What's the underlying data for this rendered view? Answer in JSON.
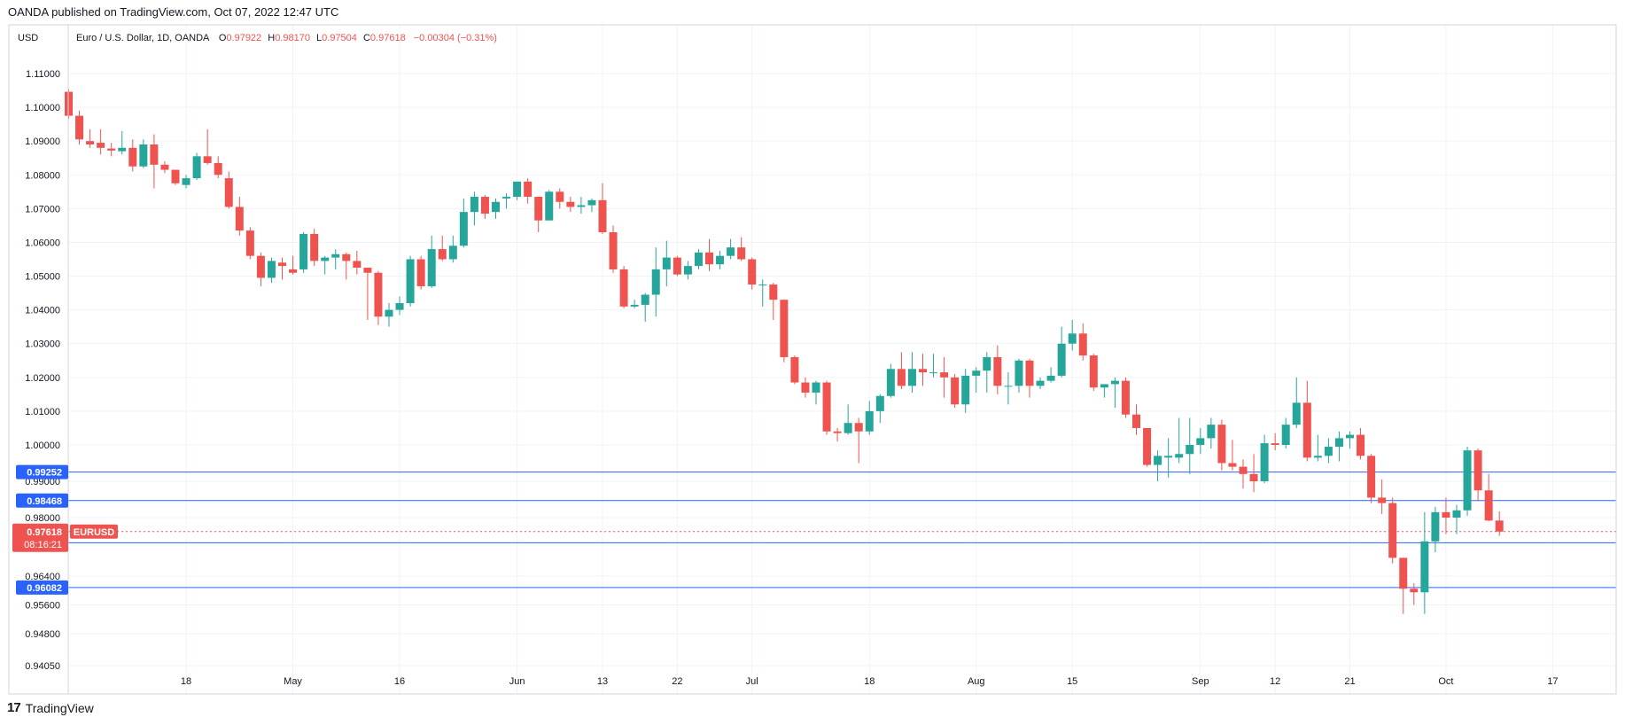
{
  "header": {
    "published": "OANDA published on TradingView.com, Oct 07, 2022 12:47 UTC"
  },
  "footer": {
    "brand": "TradingView"
  },
  "colors": {
    "up": "#26a69a",
    "down": "#ef5350",
    "level": "#2962ff",
    "grid": "#f0f3fa",
    "border": "#d1d4dc"
  },
  "chart_data": {
    "type": "candlestick",
    "title": "Euro / U.S. Dollar, 1D, OANDA",
    "currency": "USD",
    "symbol": "EURUSD",
    "ohlc": {
      "o_label": "O",
      "o": "0.97922",
      "h_label": "H",
      "h": "0.98170",
      "l_label": "L",
      "l": "0.97504",
      "c_label": "C",
      "c": "0.97618",
      "change": "−0.00304 (−0.31%)"
    },
    "price_ticks": [
      1.11,
      1.1,
      1.09,
      1.08,
      1.07,
      1.06,
      1.05,
      1.04,
      1.03,
      1.02,
      1.01,
      1.0,
      0.99,
      0.98,
      0.964,
      0.956,
      0.948,
      0.9405
    ],
    "price_tick_labels": [
      "1.11000",
      "1.10000",
      "1.09000",
      "1.08000",
      "1.07000",
      "1.06000",
      "1.05000",
      "1.04000",
      "1.03000",
      "1.02000",
      "1.01000",
      "1.00000",
      "0.99000",
      "0.98000",
      "0.96400",
      "0.95600",
      "0.94800",
      "0.94050"
    ],
    "ylim": [
      0.9405,
      1.1137
    ],
    "time_ticks": [
      {
        "i": 11,
        "label": "18"
      },
      {
        "i": 21,
        "label": "May"
      },
      {
        "i": 31,
        "label": "16"
      },
      {
        "i": 42,
        "label": "Jun"
      },
      {
        "i": 50,
        "label": "13"
      },
      {
        "i": 57,
        "label": "22"
      },
      {
        "i": 64,
        "label": "Jul"
      },
      {
        "i": 75,
        "label": "18"
      },
      {
        "i": 85,
        "label": "Aug"
      },
      {
        "i": 94,
        "label": "15"
      },
      {
        "i": 106,
        "label": "Sep"
      },
      {
        "i": 113,
        "label": "12"
      },
      {
        "i": 120,
        "label": "21"
      },
      {
        "i": 129,
        "label": "Oct"
      },
      {
        "i": 139,
        "label": "17"
      }
    ],
    "levels": [
      {
        "value": 0.99252,
        "label": "0.99252"
      },
      {
        "value": 0.98468,
        "label": "0.98468"
      },
      {
        "value": 0.97313,
        "label": "0.97313"
      },
      {
        "value": 0.96082,
        "label": "0.96082"
      }
    ],
    "last_price": {
      "value": 0.97618,
      "label": "0.97618",
      "countdown": "08:16:21"
    },
    "candles": [
      [
        1.1046,
        1.1055,
        1.0965,
        1.0975
      ],
      [
        1.0975,
        1.099,
        1.089,
        1.0905
      ],
      [
        1.09,
        1.0935,
        1.088,
        1.089
      ],
      [
        1.0895,
        1.0935,
        1.086,
        1.088
      ],
      [
        1.0878,
        1.0895,
        1.0855,
        1.0872
      ],
      [
        1.087,
        1.093,
        1.086,
        1.088
      ],
      [
        1.088,
        1.0905,
        1.081,
        1.0825
      ],
      [
        1.0825,
        1.0905,
        1.082,
        1.089
      ],
      [
        1.089,
        1.092,
        1.076,
        1.083
      ],
      [
        1.083,
        1.084,
        1.0805,
        1.0815
      ],
      [
        1.0815,
        1.0815,
        1.077,
        1.0775
      ],
      [
        1.077,
        1.08,
        1.076,
        1.079
      ],
      [
        1.079,
        1.0865,
        1.0785,
        1.0855
      ],
      [
        1.0855,
        1.0935,
        1.083,
        1.0835
      ],
      [
        1.0835,
        1.0855,
        1.079,
        1.08
      ],
      [
        1.079,
        1.081,
        1.07,
        1.0705
      ],
      [
        1.0705,
        1.0735,
        1.062,
        1.0635
      ],
      [
        1.0635,
        1.0645,
        1.055,
        1.056
      ],
      [
        1.056,
        1.057,
        1.047,
        1.0495
      ],
      [
        1.0495,
        1.0555,
        1.048,
        1.0545
      ],
      [
        1.054,
        1.0555,
        1.049,
        1.053
      ],
      [
        1.052,
        1.056,
        1.0505,
        1.051
      ],
      [
        1.052,
        1.063,
        1.051,
        1.0625
      ],
      [
        1.0625,
        1.064,
        1.053,
        1.0545
      ],
      [
        1.0545,
        1.056,
        1.0505,
        1.0555
      ],
      [
        1.0555,
        1.058,
        1.052,
        1.0565
      ],
      [
        1.0565,
        1.057,
        1.049,
        1.0545
      ],
      [
        1.0545,
        1.0575,
        1.0505,
        1.0525
      ],
      [
        1.0525,
        1.0525,
        1.037,
        1.051
      ],
      [
        1.051,
        1.0515,
        1.0355,
        1.038
      ],
      [
        1.038,
        1.042,
        1.035,
        1.04
      ],
      [
        1.04,
        1.044,
        1.0385,
        1.042
      ],
      [
        1.042,
        1.056,
        1.041,
        1.055
      ],
      [
        1.055,
        1.056,
        1.046,
        1.047
      ],
      [
        1.047,
        1.062,
        1.0465,
        1.058
      ],
      [
        1.058,
        1.062,
        1.0545,
        1.055
      ],
      [
        1.055,
        1.062,
        1.054,
        1.059
      ],
      [
        1.059,
        1.073,
        1.0585,
        1.069
      ],
      [
        1.069,
        1.075,
        1.065,
        1.0735
      ],
      [
        1.0735,
        1.074,
        1.067,
        1.0685
      ],
      [
        1.069,
        1.073,
        1.067,
        1.072
      ],
      [
        1.073,
        1.0745,
        1.07,
        1.0735
      ],
      [
        1.0735,
        1.078,
        1.0725,
        1.078
      ],
      [
        1.078,
        1.079,
        1.0715,
        1.0735
      ],
      [
        1.0735,
        1.0735,
        1.063,
        1.0665
      ],
      [
        1.0665,
        1.0755,
        1.0665,
        1.075
      ],
      [
        1.075,
        1.076,
        1.07,
        1.072
      ],
      [
        1.072,
        1.0735,
        1.069,
        1.0705
      ],
      [
        1.0705,
        1.0735,
        1.0685,
        1.071
      ],
      [
        1.071,
        1.073,
        1.069,
        1.0725
      ],
      [
        1.0725,
        1.0775,
        1.0625,
        1.063
      ],
      [
        1.063,
        1.065,
        1.051,
        1.052
      ],
      [
        1.052,
        1.053,
        1.0405,
        1.041
      ],
      [
        1.041,
        1.043,
        1.0405,
        1.0415
      ],
      [
        1.0415,
        1.045,
        1.0365,
        1.0445
      ],
      [
        1.0445,
        1.0585,
        1.038,
        1.052
      ],
      [
        1.052,
        1.0605,
        1.047,
        1.0555
      ],
      [
        1.0555,
        1.056,
        1.05,
        1.0505
      ],
      [
        1.0505,
        1.0545,
        1.049,
        1.053
      ],
      [
        1.053,
        1.058,
        1.052,
        1.057
      ],
      [
        1.057,
        1.061,
        1.0515,
        1.0535
      ],
      [
        1.0535,
        1.0575,
        1.052,
        1.056
      ],
      [
        1.056,
        1.061,
        1.055,
        1.0585
      ],
      [
        1.0585,
        1.0615,
        1.0545,
        1.055
      ],
      [
        1.055,
        1.0555,
        1.046,
        1.0475
      ],
      [
        1.0475,
        1.049,
        1.041,
        1.0475
      ],
      [
        1.0475,
        1.048,
        1.037,
        1.043
      ],
      [
        1.043,
        1.043,
        1.0245,
        1.026
      ],
      [
        1.026,
        1.0265,
        1.018,
        1.0185
      ],
      [
        1.0185,
        1.02,
        1.014,
        1.0155
      ],
      [
        1.0155,
        1.019,
        1.012,
        1.0185
      ],
      [
        1.0185,
        1.019,
        1.003,
        1.004
      ],
      [
        1.004,
        1.005,
        1.001,
        1.0035
      ],
      [
        1.0035,
        1.012,
        1.003,
        1.0065
      ],
      [
        1.0065,
        1.008,
        0.995,
        1.004
      ],
      [
        1.004,
        1.013,
        1.003,
        1.01
      ],
      [
        1.01,
        1.015,
        1.0065,
        1.0145
      ],
      [
        1.0145,
        1.024,
        1.014,
        1.0225
      ],
      [
        1.0225,
        1.0275,
        1.0165,
        1.0175
      ],
      [
        1.0175,
        1.0275,
        1.0155,
        1.0225
      ],
      [
        1.0225,
        1.027,
        1.0175,
        1.0215
      ],
      [
        1.0215,
        1.027,
        1.02,
        1.0215
      ],
      [
        1.0215,
        1.026,
        1.014,
        1.02
      ],
      [
        1.02,
        1.021,
        1.011,
        1.012
      ],
      [
        1.012,
        1.0225,
        1.0095,
        1.0205
      ],
      [
        1.0205,
        1.023,
        1.0155,
        1.022
      ],
      [
        1.022,
        1.0275,
        1.0155,
        1.026
      ],
      [
        1.026,
        1.0295,
        1.015,
        1.0175
      ],
      [
        1.0175,
        1.0215,
        1.012,
        1.0175
      ],
      [
        1.0175,
        1.0255,
        1.0155,
        1.025
      ],
      [
        1.025,
        1.0255,
        1.014,
        1.0175
      ],
      [
        1.0175,
        1.02,
        1.0165,
        1.019
      ],
      [
        1.019,
        1.023,
        1.0185,
        1.0205
      ],
      [
        1.0205,
        1.035,
        1.02,
        1.03
      ],
      [
        1.03,
        1.037,
        1.028,
        1.033
      ],
      [
        1.033,
        1.036,
        1.025,
        1.0265
      ],
      [
        1.0265,
        1.027,
        1.016,
        1.017
      ],
      [
        1.017,
        1.018,
        1.014,
        1.018
      ],
      [
        1.018,
        1.02,
        1.011,
        1.019
      ],
      [
        1.019,
        1.02,
        1.008,
        1.009
      ],
      [
        1.009,
        1.012,
        1.003,
        1.005
      ],
      [
        1.005,
        1.005,
        0.994,
        0.9945
      ],
      [
        0.9945,
        0.9985,
        0.99,
        0.997
      ],
      [
        0.9965,
        1.002,
        0.991,
        0.997
      ],
      [
        0.9965,
        1.008,
        0.995,
        0.9975
      ],
      [
        0.9975,
        1.008,
        0.992,
        1.0
      ],
      [
        1.0,
        1.005,
        0.9975,
        1.002
      ],
      [
        1.002,
        1.008,
        0.999,
        1.006
      ],
      [
        1.006,
        1.0075,
        0.993,
        0.995
      ],
      [
        0.995,
        1.0015,
        0.993,
        0.994
      ],
      [
        0.994,
        0.996,
        0.988,
        0.992
      ],
      [
        0.992,
        0.9975,
        0.987,
        0.99
      ],
      [
        0.99,
        1.003,
        0.9895,
        1.0005
      ],
      [
        1.0005,
        1.0035,
        0.9985,
        1.0
      ],
      [
        1.0,
        1.008,
        0.999,
        1.006
      ],
      [
        1.006,
        1.02,
        1.005,
        1.0125
      ],
      [
        1.0125,
        1.019,
        0.9955,
        0.9965
      ],
      [
        0.9965,
        1.003,
        0.9955,
        0.997
      ],
      [
        0.997,
        1.002,
        0.995,
        0.9995
      ],
      [
        0.9995,
        1.004,
        0.9955,
        1.002
      ],
      [
        1.002,
        1.004,
        0.999,
        1.003
      ],
      [
        1.003,
        1.005,
        0.996,
        0.997
      ],
      [
        0.997,
        0.9975,
        0.984,
        0.9855
      ],
      [
        0.9855,
        0.9905,
        0.981,
        0.984
      ],
      [
        0.984,
        0.9855,
        0.9675,
        0.969
      ],
      [
        0.969,
        0.969,
        0.9535,
        0.9605
      ],
      [
        0.9605,
        0.962,
        0.956,
        0.9595
      ],
      [
        0.9595,
        0.9815,
        0.9535,
        0.9735
      ],
      [
        0.9735,
        0.983,
        0.9705,
        0.9815
      ],
      [
        0.9815,
        0.9855,
        0.9755,
        0.98
      ],
      [
        0.98,
        0.9835,
        0.9755,
        0.982
      ],
      [
        0.982,
        0.9995,
        0.9805,
        0.9985
      ],
      [
        0.9985,
        0.999,
        0.9845,
        0.9875
      ],
      [
        0.9875,
        0.992,
        0.979,
        0.9792
      ],
      [
        0.9792,
        0.9817,
        0.975,
        0.97618
      ]
    ]
  }
}
